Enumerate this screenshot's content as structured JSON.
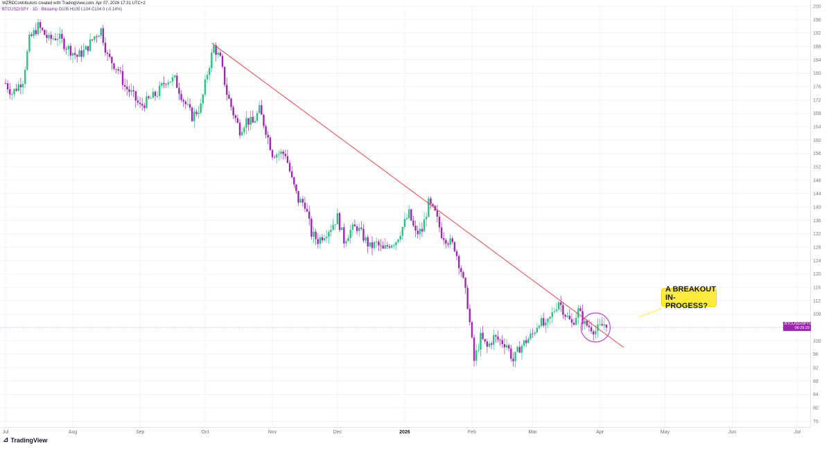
{
  "header": {
    "line1": "WZRDContributors created with TradingView.com, Apr 07, 2026 17:31 UTC+2",
    "symbol": "BTCUSD/SPY · 1D · Bitstamp",
    "ohlc": "O105 H105 L104 C104 0 (-0.14%)"
  },
  "price_label": {
    "symbol": "BTCUSD/SPY",
    "value": "104",
    "countdown": "06:29:29"
  },
  "annotation": {
    "line1": "A BREAKOUT",
    "line2": "IN-PROGESS?"
  },
  "branding": {
    "logo_text": "TradingView"
  },
  "colors": {
    "up": "#26c281",
    "down": "#9c27b0",
    "trendline": "#e5484d",
    "circle": "#c53ecf",
    "callout": "#ffeb3b",
    "grid": "#f0f3fa"
  },
  "chart_data": {
    "type": "candlestick",
    "y_axis": {
      "ticks": [
        200,
        196,
        192,
        188,
        184,
        180,
        176,
        172,
        168,
        164,
        160,
        156,
        152,
        148,
        144,
        140,
        136,
        132,
        128,
        124,
        120,
        116,
        112,
        108,
        100,
        96,
        92,
        88,
        84,
        80,
        76
      ],
      "range": [
        74,
        200
      ],
      "side": "right"
    },
    "x_axis": {
      "labels": [
        {
          "text": "Jul",
          "bold": false
        },
        {
          "text": "Aug",
          "bold": false
        },
        {
          "text": "Sep",
          "bold": false
        },
        {
          "text": "Oct",
          "bold": false
        },
        {
          "text": "Nov",
          "bold": false
        },
        {
          "text": "Dec",
          "bold": false
        },
        {
          "text": "2026",
          "bold": true
        },
        {
          "text": "Feb",
          "bold": false
        },
        {
          "text": "Mar",
          "bold": false
        },
        {
          "text": "Apr",
          "bold": false
        },
        {
          "text": "May",
          "bold": false
        },
        {
          "text": "Jun",
          "bold": false
        },
        {
          "text": "Jul",
          "bold": false
        }
      ],
      "label_days": [
        0,
        31,
        62,
        92,
        123,
        153,
        184,
        215,
        243,
        274,
        304,
        335,
        365
      ]
    },
    "trendline": {
      "start": {
        "day": 95,
        "price": 189
      },
      "end": {
        "day": 285,
        "price": 98
      }
    },
    "current_price": 104,
    "highlight_circle": {
      "day": 272,
      "price": 104
    },
    "anchors": [
      [
        0,
        177
      ],
      [
        3,
        174
      ],
      [
        8,
        178
      ],
      [
        11,
        190
      ],
      [
        15,
        194
      ],
      [
        20,
        190
      ],
      [
        24,
        191
      ],
      [
        28,
        188
      ],
      [
        33,
        185
      ],
      [
        37,
        187
      ],
      [
        41,
        191
      ],
      [
        44,
        193
      ],
      [
        47,
        185
      ],
      [
        52,
        181
      ],
      [
        55,
        176
      ],
      [
        58,
        174
      ],
      [
        62,
        170
      ],
      [
        66,
        172
      ],
      [
        70,
        174
      ],
      [
        74,
        178
      ],
      [
        78,
        178
      ],
      [
        82,
        172
      ],
      [
        86,
        167
      ],
      [
        90,
        170
      ],
      [
        93,
        180
      ],
      [
        96,
        188
      ],
      [
        99,
        184
      ],
      [
        102,
        174
      ],
      [
        105,
        168
      ],
      [
        108,
        163
      ],
      [
        111,
        166
      ],
      [
        114,
        165
      ],
      [
        117,
        169
      ],
      [
        120,
        163
      ],
      [
        123,
        156
      ],
      [
        126,
        156
      ],
      [
        129,
        156
      ],
      [
        132,
        148
      ],
      [
        135,
        142
      ],
      [
        138,
        141
      ],
      [
        141,
        132
      ],
      [
        144,
        130
      ],
      [
        147,
        132
      ],
      [
        150,
        134
      ],
      [
        153,
        137
      ],
      [
        156,
        130
      ],
      [
        159,
        133
      ],
      [
        162,
        134
      ],
      [
        165,
        131
      ],
      [
        168,
        128
      ],
      [
        171,
        129
      ],
      [
        174,
        127
      ],
      [
        177,
        129
      ],
      [
        180,
        130
      ],
      [
        183,
        134
      ],
      [
        186,
        138
      ],
      [
        189,
        132
      ],
      [
        192,
        133
      ],
      [
        195,
        141
      ],
      [
        198,
        138
      ],
      [
        201,
        132
      ],
      [
        204,
        130
      ],
      [
        207,
        128
      ],
      [
        210,
        121
      ],
      [
        213,
        111
      ],
      [
        216,
        94
      ],
      [
        219,
        101
      ],
      [
        222,
        98
      ],
      [
        225,
        101
      ],
      [
        228,
        100
      ],
      [
        231,
        99
      ],
      [
        234,
        94
      ],
      [
        237,
        98
      ],
      [
        240,
        100
      ],
      [
        243,
        102
      ],
      [
        246,
        106
      ],
      [
        249,
        104
      ],
      [
        252,
        108
      ],
      [
        255,
        112
      ],
      [
        258,
        108
      ],
      [
        261,
        105
      ],
      [
        264,
        109
      ],
      [
        267,
        105
      ],
      [
        270,
        104
      ],
      [
        272,
        103
      ],
      [
        274,
        104
      ],
      [
        276,
        105
      ],
      [
        277,
        104
      ]
    ]
  }
}
